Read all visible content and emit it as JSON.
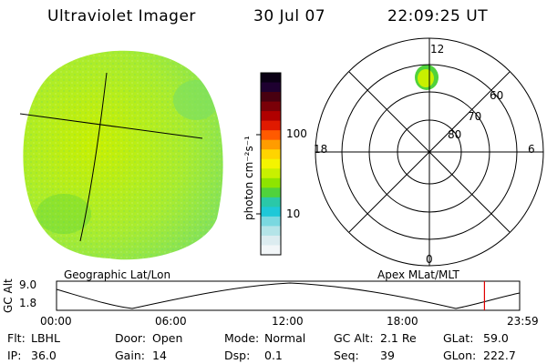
{
  "header": {
    "instrument": "Ultraviolet Imager",
    "date": "30 Jul 07",
    "time": "22:09:25 UT"
  },
  "colorbar": {
    "unit_label": "photon cm⁻²s⁻¹",
    "ticks": [
      "100",
      "10"
    ],
    "colors": [
      "#0a0014",
      "#1e0030",
      "#480010",
      "#7a0008",
      "#b00000",
      "#e01a00",
      "#ff5a00",
      "#ff9c00",
      "#ffd400",
      "#f4f400",
      "#c8f000",
      "#8ee400",
      "#50d23c",
      "#2ac8a8",
      "#1ec8d8",
      "#7ad8e0",
      "#b4e4e8",
      "#dcecf0",
      "#f2f6f8"
    ]
  },
  "geo_panel": {
    "label": "Geographic Lat/Lon",
    "disk_colors": [
      "#c8f000",
      "#a8ec30",
      "#7ee060"
    ]
  },
  "polar_panel": {
    "label": "Apex MLat/MLT",
    "mlt_labels": {
      "top": "12",
      "left": "18",
      "right": "6",
      "bottom": "0"
    },
    "mlat_labels": [
      "60",
      "70",
      "80"
    ],
    "spot_colors": [
      "#50d23c",
      "#c8f000"
    ]
  },
  "altitude_panel": {
    "ylabel": "GC Alt",
    "y_ticks": [
      "9.0",
      "1.8"
    ],
    "x_ticks": [
      "00:00",
      "06:00",
      "12:00",
      "18:00",
      "23:59"
    ],
    "current_time_marker_hours": 22.16,
    "marker_color": "#e00000"
  },
  "status": {
    "row1": [
      {
        "label": "Flt:",
        "value": "LBHL"
      },
      {
        "label": "Door:",
        "value": "Open"
      },
      {
        "label": "Mode:",
        "value": "Normal"
      },
      {
        "label": "GC Alt:",
        "value": "2.1 Re"
      },
      {
        "label": "GLat:",
        "value": "59.0"
      }
    ],
    "row2": [
      {
        "label": "IP:",
        "value": "36.0"
      },
      {
        "label": "Gain:",
        "value": "14"
      },
      {
        "label": "Dsp:",
        "value": "0.1"
      },
      {
        "label": "Seq:",
        "value": "39"
      },
      {
        "label": "GLon:",
        "value": "222.7"
      }
    ]
  }
}
